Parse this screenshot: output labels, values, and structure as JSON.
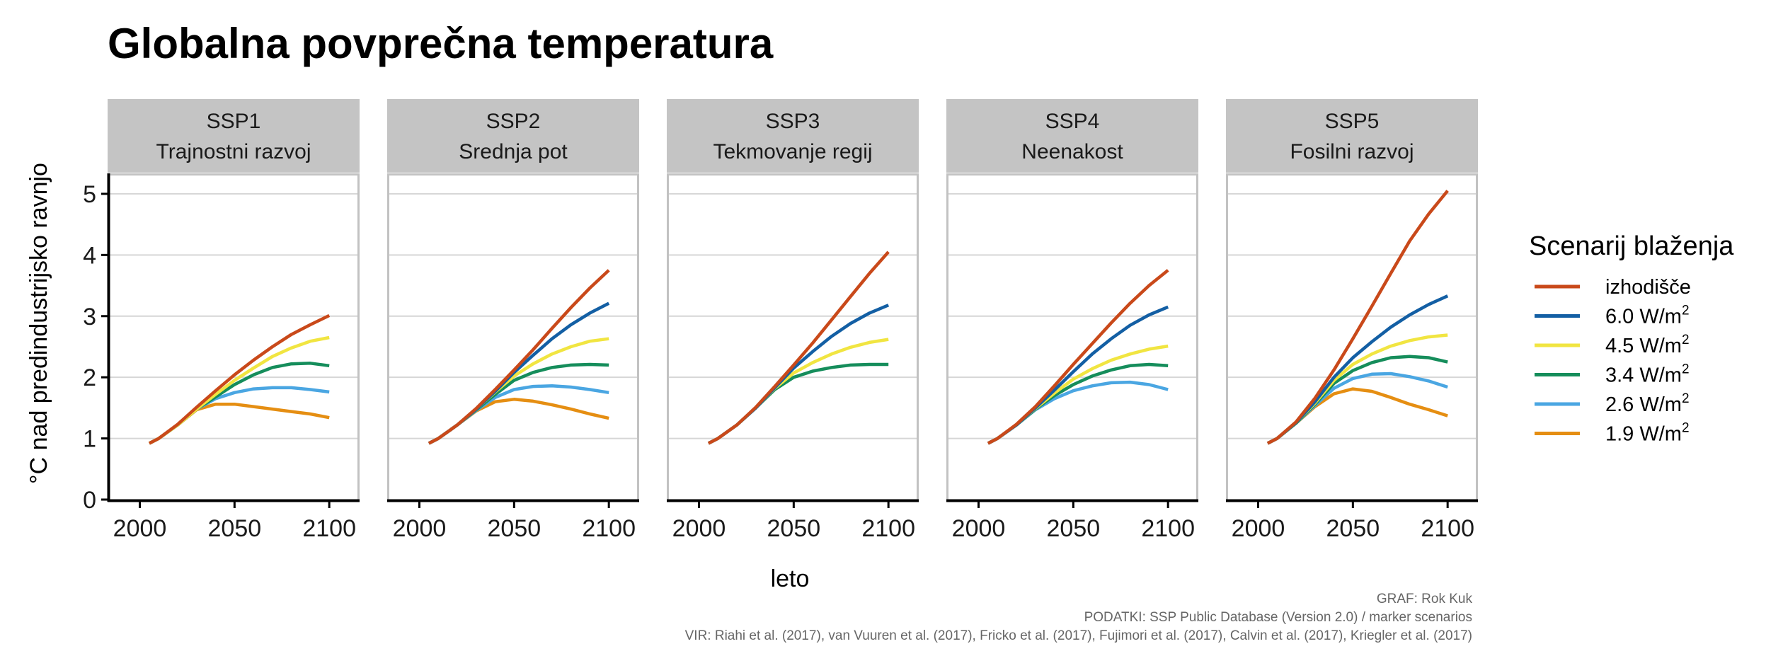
{
  "chart_data": {
    "type": "line",
    "title": "Globalna povprečna temperatura",
    "xlabel": "leto",
    "ylabel": "°C nad predindustrijsko ravnjo",
    "xlim": [
      1983,
      2116
    ],
    "ylim": [
      0,
      5.3
    ],
    "x_ticks": [
      2000,
      2050,
      2100
    ],
    "x_tick_labels": [
      "2000",
      "2050",
      "2100"
    ],
    "y_ticks": [
      0,
      1,
      2,
      3,
      4,
      5
    ],
    "y_tick_labels": [
      "0",
      "1",
      "2",
      "3",
      "4",
      "5"
    ],
    "grid": true,
    "legend": {
      "title": "Scenarij blaženja",
      "position": "right",
      "entries": [
        {
          "key": "baseline",
          "label": "izhodišče",
          "sup": "",
          "color": "#c9491a"
        },
        {
          "key": "6.0",
          "label": "6.0 W/m",
          "sup": "2",
          "color": "#135fa4"
        },
        {
          "key": "4.5",
          "label": "4.5 W/m",
          "sup": "2",
          "color": "#f1e541"
        },
        {
          "key": "3.4",
          "label": "3.4 W/m",
          "sup": "2",
          "color": "#158d5b"
        },
        {
          "key": "2.6",
          "label": "2.6 W/m",
          "sup": "2",
          "color": "#4aa6e2"
        },
        {
          "key": "1.9",
          "label": "1.9 W/m",
          "sup": "2",
          "color": "#e58e12"
        }
      ]
    },
    "x": [
      2005,
      2010,
      2020,
      2030,
      2040,
      2050,
      2060,
      2070,
      2080,
      2090,
      2100
    ],
    "panels": [
      {
        "label_line1": "SSP1",
        "label_line2": "Trajnostni razvoj",
        "series": [
          {
            "key": "1.9",
            "values": [
              0.92,
              1.0,
              1.22,
              1.47,
              1.56,
              1.56,
              1.52,
              1.48,
              1.44,
              1.4,
              1.34
            ]
          },
          {
            "key": "2.6",
            "values": [
              0.92,
              1.0,
              1.22,
              1.48,
              1.65,
              1.75,
              1.81,
              1.83,
              1.83,
              1.8,
              1.76
            ]
          },
          {
            "key": "3.4",
            "values": [
              0.92,
              1.0,
              1.22,
              1.48,
              1.68,
              1.88,
              2.04,
              2.16,
              2.22,
              2.23,
              2.19
            ]
          },
          {
            "key": "4.5",
            "values": [
              0.92,
              1.0,
              1.22,
              1.48,
              1.72,
              1.95,
              2.15,
              2.34,
              2.48,
              2.59,
              2.65
            ]
          },
          {
            "key": "baseline",
            "values": [
              0.92,
              1.0,
              1.23,
              1.51,
              1.78,
              2.04,
              2.28,
              2.5,
              2.7,
              2.86,
              3.01
            ]
          }
        ]
      },
      {
        "label_line1": "SSP2",
        "label_line2": "Srednja pot",
        "series": [
          {
            "key": "1.9",
            "values": [
              0.92,
              1.0,
              1.22,
              1.45,
              1.6,
              1.64,
              1.61,
              1.55,
              1.48,
              1.4,
              1.33
            ]
          },
          {
            "key": "2.6",
            "values": [
              0.92,
              1.0,
              1.22,
              1.46,
              1.67,
              1.8,
              1.85,
              1.86,
              1.84,
              1.8,
              1.75
            ]
          },
          {
            "key": "3.4",
            "values": [
              0.92,
              1.0,
              1.22,
              1.47,
              1.72,
              1.95,
              2.08,
              2.16,
              2.2,
              2.21,
              2.2
            ]
          },
          {
            "key": "4.5",
            "values": [
              0.92,
              1.0,
              1.22,
              1.48,
              1.76,
              2.02,
              2.22,
              2.38,
              2.5,
              2.59,
              2.63
            ]
          },
          {
            "key": "6.0",
            "values": [
              0.92,
              1.0,
              1.22,
              1.48,
              1.77,
              2.08,
              2.36,
              2.63,
              2.86,
              3.05,
              3.21
            ]
          },
          {
            "key": "baseline",
            "values": [
              0.92,
              1.0,
              1.22,
              1.49,
              1.8,
              2.12,
              2.45,
              2.8,
              3.14,
              3.46,
              3.75
            ]
          }
        ]
      },
      {
        "label_line1": "SSP3",
        "label_line2": "Tekmovanje regij",
        "series": [
          {
            "key": "3.4",
            "values": [
              0.92,
              1.0,
              1.22,
              1.5,
              1.8,
              2.0,
              2.1,
              2.16,
              2.2,
              2.21,
              2.21
            ]
          },
          {
            "key": "4.5",
            "values": [
              0.92,
              1.0,
              1.22,
              1.5,
              1.82,
              2.07,
              2.24,
              2.38,
              2.49,
              2.57,
              2.62
            ]
          },
          {
            "key": "6.0",
            "values": [
              0.92,
              1.0,
              1.22,
              1.5,
              1.83,
              2.15,
              2.42,
              2.67,
              2.88,
              3.05,
              3.18
            ]
          },
          {
            "key": "baseline",
            "values": [
              0.92,
              1.0,
              1.22,
              1.51,
              1.85,
              2.2,
              2.56,
              2.94,
              3.32,
              3.7,
              4.05
            ]
          }
        ]
      },
      {
        "label_line1": "SSP4",
        "label_line2": "Neenakost",
        "series": [
          {
            "key": "2.6",
            "values": [
              0.92,
              1.0,
              1.22,
              1.47,
              1.65,
              1.78,
              1.86,
              1.91,
              1.92,
              1.88,
              1.8
            ]
          },
          {
            "key": "3.4",
            "values": [
              0.92,
              1.0,
              1.22,
              1.48,
              1.7,
              1.88,
              2.02,
              2.12,
              2.19,
              2.21,
              2.19
            ]
          },
          {
            "key": "4.5",
            "values": [
              0.92,
              1.0,
              1.22,
              1.49,
              1.74,
              1.97,
              2.14,
              2.28,
              2.38,
              2.46,
              2.51
            ]
          },
          {
            "key": "6.0",
            "values": [
              0.92,
              1.0,
              1.22,
              1.5,
              1.79,
              2.09,
              2.38,
              2.63,
              2.85,
              3.02,
              3.15
            ]
          },
          {
            "key": "baseline",
            "values": [
              0.92,
              1.0,
              1.23,
              1.52,
              1.86,
              2.21,
              2.55,
              2.89,
              3.21,
              3.5,
              3.75
            ]
          }
        ]
      },
      {
        "label_line1": "SSP5",
        "label_line2": "Fosilni razvoj",
        "series": [
          {
            "key": "1.9",
            "values": [
              0.92,
              1.0,
              1.25,
              1.52,
              1.73,
              1.81,
              1.77,
              1.67,
              1.56,
              1.47,
              1.37
            ]
          },
          {
            "key": "2.6",
            "values": [
              0.92,
              1.0,
              1.25,
              1.54,
              1.82,
              1.98,
              2.05,
              2.06,
              2.01,
              1.94,
              1.84
            ]
          },
          {
            "key": "3.4",
            "values": [
              0.92,
              1.0,
              1.25,
              1.56,
              1.9,
              2.11,
              2.24,
              2.32,
              2.34,
              2.32,
              2.25
            ]
          },
          {
            "key": "4.5",
            "values": [
              0.92,
              1.0,
              1.26,
              1.58,
              1.95,
              2.21,
              2.38,
              2.51,
              2.6,
              2.66,
              2.69
            ]
          },
          {
            "key": "6.0",
            "values": [
              0.92,
              1.0,
              1.26,
              1.6,
              2.0,
              2.32,
              2.58,
              2.82,
              3.02,
              3.19,
              3.33
            ]
          },
          {
            "key": "baseline",
            "values": [
              0.92,
              1.0,
              1.27,
              1.66,
              2.12,
              2.63,
              3.16,
              3.7,
              4.23,
              4.67,
              5.05
            ]
          }
        ]
      }
    ]
  },
  "caption": [
    "GRAF: Rok Kuk",
    "PODATKI: SSP Public Database (Version 2.0) / marker scenarios",
    "VIR: Riahi et al. (2017), van Vuuren et al. (2017), Fricko et al. (2017), Fujimori et al. (2017), Calvin et al. (2017), Kriegler et al. (2017)"
  ]
}
